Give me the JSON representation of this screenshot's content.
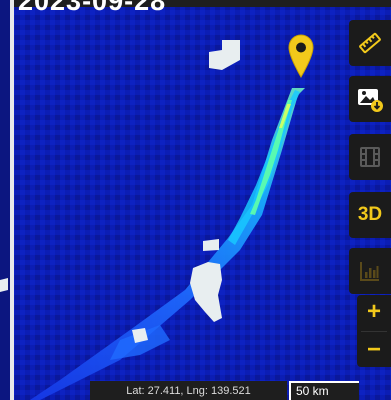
{
  "date": "2023-09-28",
  "marker": {
    "icon": "map-pin-icon",
    "color": "#f2c91b"
  },
  "toolbar": {
    "measure_icon": "ruler-icon",
    "download_icon": "image-download-icon",
    "animation_icon": "film-icon",
    "three_d_label": "3D",
    "chart_icon": "bar-chart-icon",
    "zoom_in_label": "+",
    "zoom_out_label": "−",
    "accent_color": "#f2c91b"
  },
  "coordinates": "Lat: 27.411, Lng: 139.521",
  "scale": "50 km",
  "colors": {
    "background": "#0a1aa8",
    "plume_low": "#1f5bff",
    "plume_mid": "#19b4ff",
    "plume_high": "#7dff8a",
    "cloud_mask": "#e8eef0"
  }
}
